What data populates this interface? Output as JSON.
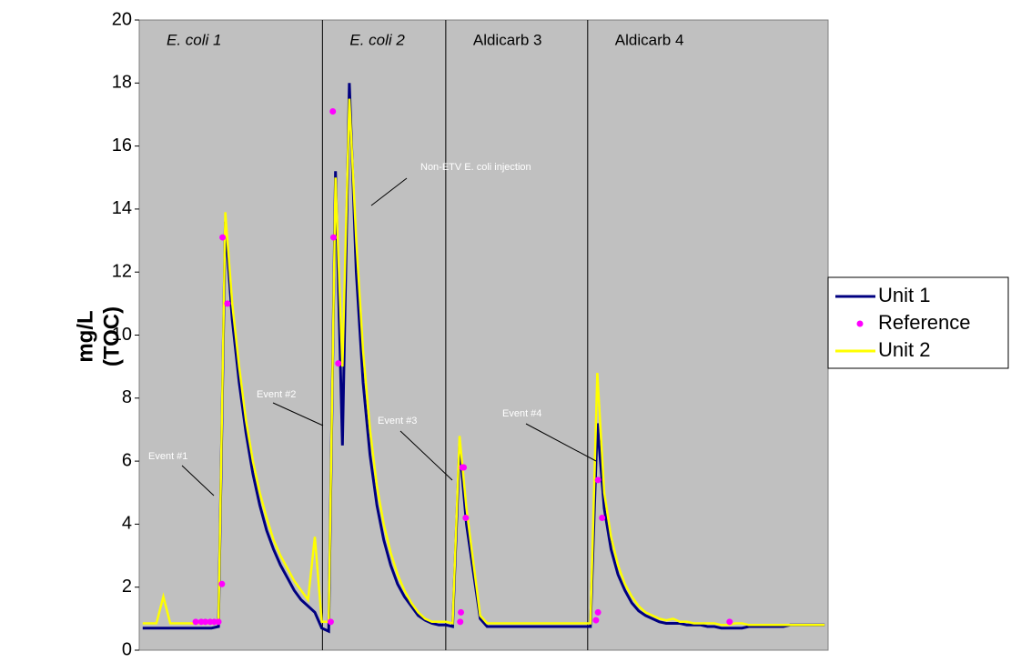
{
  "chart_data": {
    "type": "line",
    "y_label": [
      "mg/L",
      "(TOC)"
    ],
    "ylim": [
      0,
      20
    ],
    "yticks": [
      0,
      2,
      4,
      6,
      8,
      10,
      12,
      14,
      16,
      18,
      20
    ],
    "sections": [
      {
        "label": "E. coli 1",
        "start": 0,
        "italic": true
      },
      {
        "label": "E. coli 2",
        "start": 26.6,
        "italic": true
      },
      {
        "label": "Aldicarb 3",
        "start": 44.5,
        "italic": false
      },
      {
        "label": "Aldicarb 4",
        "start": 65.1,
        "italic": false
      }
    ],
    "annotations": [
      "Event #1",
      "Event #2",
      "Non-ETV E. coli injection",
      "Event #3",
      "Event #4"
    ],
    "series": [
      {
        "name": "Unit 1",
        "color": "#000080",
        "values": [
          0.7,
          0.7,
          0.7,
          0.7,
          0.7,
          0.7,
          0.7,
          0.7,
          0.7,
          0.7,
          0.7,
          0.75,
          13.6,
          10.5,
          8.5,
          6.9,
          5.6,
          4.6,
          3.8,
          3.2,
          2.7,
          2.3,
          1.9,
          1.6,
          1.4,
          1.2,
          0.7,
          0.6,
          15.2,
          6.5,
          18.0,
          12.0,
          8.5,
          6.2,
          4.6,
          3.5,
          2.7,
          2.1,
          1.7,
          1.4,
          1.1,
          0.95,
          0.85,
          0.8,
          0.8,
          0.75,
          6.5,
          4.0,
          2.5,
          1.0,
          0.75,
          0.75,
          0.75,
          0.75,
          0.75,
          0.75,
          0.75,
          0.75,
          0.75,
          0.75,
          0.75,
          0.75,
          0.75,
          0.75,
          0.75,
          0.75,
          7.2,
          4.5,
          3.2,
          2.4,
          1.9,
          1.5,
          1.25,
          1.1,
          1.0,
          0.9,
          0.85,
          0.85,
          0.85,
          0.8,
          0.8,
          0.8,
          0.75,
          0.75,
          0.7,
          0.7,
          0.7,
          0.7,
          0.75,
          0.75,
          0.75,
          0.75,
          0.75,
          0.75,
          0.8,
          0.8,
          0.8,
          0.8,
          0.8,
          0.8
        ]
      },
      {
        "name": "Reference",
        "color": "#ff00ff",
        "x": [
          7.7,
          8.5,
          9.1,
          9.8,
          10.4,
          11.0,
          11.5,
          11.6,
          12.3,
          27.3,
          27.6,
          27.7,
          28.4,
          46.1,
          46.2,
          46.4,
          46.6,
          46.9,
          65.8,
          66.1,
          66.1,
          66.7,
          85.2
        ],
        "values": [
          0.9,
          0.9,
          0.9,
          0.9,
          0.9,
          0.9,
          2.1,
          13.1,
          11.0,
          0.9,
          17.1,
          13.1,
          9.1,
          0.9,
          1.2,
          5.8,
          5.8,
          4.2,
          0.95,
          1.2,
          5.4,
          4.2,
          0.9
        ]
      },
      {
        "name": "Unit 2",
        "color": "#ffff00",
        "values": [
          0.85,
          0.85,
          0.85,
          1.7,
          0.85,
          0.85,
          0.85,
          0.85,
          0.85,
          0.85,
          0.85,
          0.85,
          13.9,
          11.0,
          9.0,
          7.3,
          6.0,
          5.0,
          4.2,
          3.5,
          3.0,
          2.6,
          2.2,
          1.9,
          1.6,
          3.6,
          0.9,
          0.9,
          15.0,
          9.0,
          17.5,
          13.0,
          9.5,
          7.0,
          5.2,
          4.0,
          3.1,
          2.4,
          1.9,
          1.5,
          1.2,
          1.0,
          0.9,
          0.9,
          0.9,
          0.85,
          6.8,
          4.5,
          2.8,
          1.1,
          0.85,
          0.85,
          0.85,
          0.85,
          0.85,
          0.85,
          0.85,
          0.85,
          0.85,
          0.85,
          0.85,
          0.85,
          0.85,
          0.85,
          0.85,
          0.85,
          8.8,
          5.0,
          3.6,
          2.7,
          2.1,
          1.7,
          1.4,
          1.2,
          1.1,
          1.0,
          0.95,
          1.0,
          0.9,
          0.9,
          0.85,
          0.85,
          0.85,
          0.85,
          0.8,
          0.8,
          0.85,
          0.85,
          0.8,
          0.8,
          0.8,
          0.8,
          0.8,
          0.8,
          0.8,
          0.8,
          0.8,
          0.8,
          0.8,
          0.8
        ]
      }
    ]
  }
}
